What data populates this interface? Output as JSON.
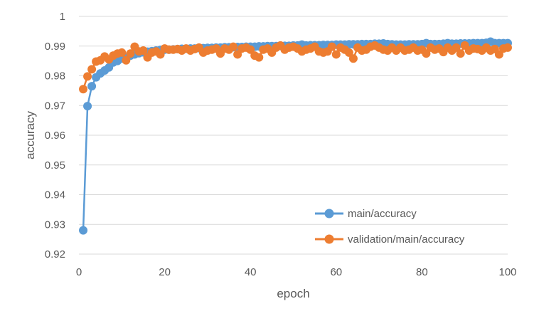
{
  "chart_data": {
    "type": "line",
    "title": "",
    "xlabel": "epoch",
    "ylabel": "accuracy",
    "xlim": [
      0,
      100
    ],
    "ylim": [
      0.92,
      1.0
    ],
    "xticks": [
      0,
      20,
      40,
      60,
      80,
      100
    ],
    "yticks": [
      0.92,
      0.93,
      0.94,
      0.95,
      0.96,
      0.97,
      0.98,
      0.99,
      1
    ],
    "ytick_labels": [
      "0.92",
      "0.93",
      "0.94",
      "0.95",
      "0.96",
      "0.97",
      "0.98",
      "0.99",
      "1"
    ],
    "grid": "horizontal",
    "legend_position": "bottom-right inside plot",
    "series": [
      {
        "name": "main/accuracy",
        "color": "#5B9BD5",
        "marker": "circle",
        "values": [
          0.928,
          0.9698,
          0.9765,
          0.9795,
          0.9808,
          0.9818,
          0.9828,
          0.9845,
          0.985,
          0.9858,
          0.9862,
          0.9868,
          0.9872,
          0.9876,
          0.9879,
          0.9881,
          0.9883,
          0.9885,
          0.9887,
          0.9888,
          0.9888,
          0.9889,
          0.989,
          0.9891,
          0.9891,
          0.9892,
          0.9892,
          0.9893,
          0.9893,
          0.9894,
          0.9894,
          0.9895,
          0.9895,
          0.9896,
          0.9896,
          0.9896,
          0.9897,
          0.9897,
          0.9898,
          0.9898,
          0.9898,
          0.9899,
          0.9899,
          0.99,
          0.99,
          0.99,
          0.9901,
          0.9901,
          0.9901,
          0.9902,
          0.9902,
          0.9905,
          0.9902,
          0.9903,
          0.9903,
          0.9903,
          0.9904,
          0.9904,
          0.9904,
          0.9905,
          0.9905,
          0.9905,
          0.9906,
          0.9906,
          0.9906,
          0.9907,
          0.9907,
          0.9907,
          0.9908,
          0.9908,
          0.9909,
          0.9907,
          0.9906,
          0.9905,
          0.9905,
          0.9905,
          0.9906,
          0.9906,
          0.9906,
          0.9907,
          0.991,
          0.9907,
          0.9907,
          0.9907,
          0.9908,
          0.991,
          0.9908,
          0.9908,
          0.9909,
          0.9909,
          0.9909,
          0.991,
          0.991,
          0.991,
          0.9911,
          0.9915,
          0.991,
          0.991,
          0.991,
          0.991
        ]
      },
      {
        "name": "validation/main/accuracy",
        "color": "#ED7D31",
        "marker": "circle",
        "values": [
          0.9755,
          0.9798,
          0.9822,
          0.9848,
          0.9852,
          0.9865,
          0.9855,
          0.9868,
          0.9875,
          0.9878,
          0.9852,
          0.9875,
          0.9898,
          0.9882,
          0.9885,
          0.9862,
          0.9878,
          0.9882,
          0.9872,
          0.9892,
          0.9888,
          0.9888,
          0.989,
          0.9885,
          0.9892,
          0.9885,
          0.989,
          0.9895,
          0.9878,
          0.9885,
          0.9888,
          0.9892,
          0.9875,
          0.9892,
          0.9888,
          0.9898,
          0.9872,
          0.9892,
          0.9895,
          0.9888,
          0.9868,
          0.9862,
          0.9888,
          0.9892,
          0.9878,
          0.9895,
          0.9902,
          0.9888,
          0.9895,
          0.9898,
          0.9892,
          0.9882,
          0.9888,
          0.9892,
          0.9898,
          0.9882,
          0.9878,
          0.9882,
          0.9898,
          0.9872,
          0.9895,
          0.9888,
          0.9878,
          0.9858,
          0.9895,
          0.9885,
          0.9888,
          0.9898,
          0.9902,
          0.9895,
          0.9888,
          0.9885,
          0.9895,
          0.9885,
          0.9895,
          0.9885,
          0.9888,
          0.9895,
          0.9885,
          0.9888,
          0.9875,
          0.9895,
          0.9888,
          0.9892,
          0.988,
          0.9895,
          0.9885,
          0.9895,
          0.9875,
          0.9902,
          0.9885,
          0.9892,
          0.989,
          0.9885,
          0.9895,
          0.9885,
          0.989,
          0.9872,
          0.9892,
          0.9895
        ]
      }
    ]
  }
}
